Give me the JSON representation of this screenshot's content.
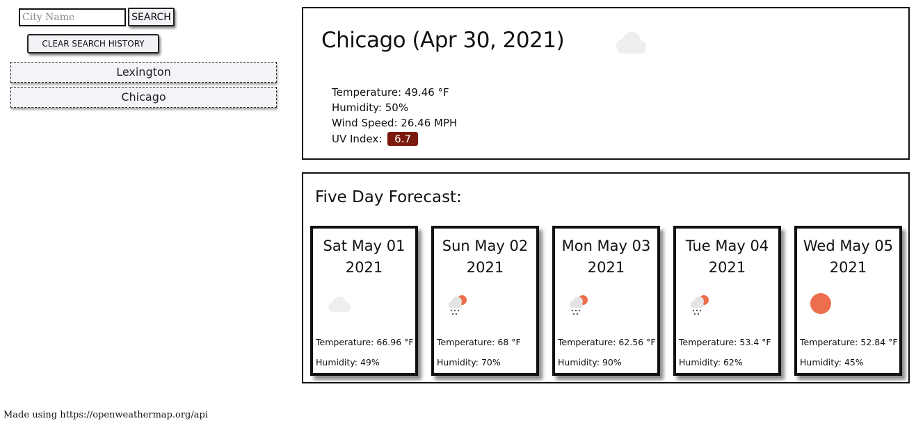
{
  "search": {
    "placeholder": "City Name",
    "value": "",
    "button_label": "SEARCH"
  },
  "history": {
    "clear_label": "CLEAR SEARCH HISTORY",
    "items": [
      "Lexington",
      "Chicago"
    ]
  },
  "current": {
    "title": "Chicago (Apr 30, 2021)",
    "icon": "cloud-icon",
    "temperature": "Temperature: 49.46 °F",
    "humidity": "Humidity: 50%",
    "wind": "Wind Speed: 26.46 MPH",
    "uv_label": "UV Index:",
    "uv_value": "6.7",
    "uv_color": "#7a1a0f"
  },
  "forecast": {
    "title": "Five Day Forecast:",
    "days": [
      {
        "day": "Sat May 01",
        "year": "2021",
        "icon": "cloud-icon",
        "temperature": "Temperature: 66.96 °F",
        "humidity": "Humidity: 49%"
      },
      {
        "day": "Sun May 02",
        "year": "2021",
        "icon": "rain-sun-icon",
        "temperature": "Temperature: 68 °F",
        "humidity": "Humidity: 70%"
      },
      {
        "day": "Mon May 03",
        "year": "2021",
        "icon": "rain-sun-icon",
        "temperature": "Temperature: 62.56 °F",
        "humidity": "Humidity: 90%"
      },
      {
        "day": "Tue May 04",
        "year": "2021",
        "icon": "rain-sun-icon",
        "temperature": "Temperature: 53.4 °F",
        "humidity": "Humidity: 62%"
      },
      {
        "day": "Wed May 05",
        "year": "2021",
        "icon": "sun-icon",
        "temperature": "Temperature: 52.84 °F",
        "humidity": "Humidity: 45%"
      }
    ]
  },
  "footer": {
    "text": "Made using https://openweathermap.org/api"
  }
}
